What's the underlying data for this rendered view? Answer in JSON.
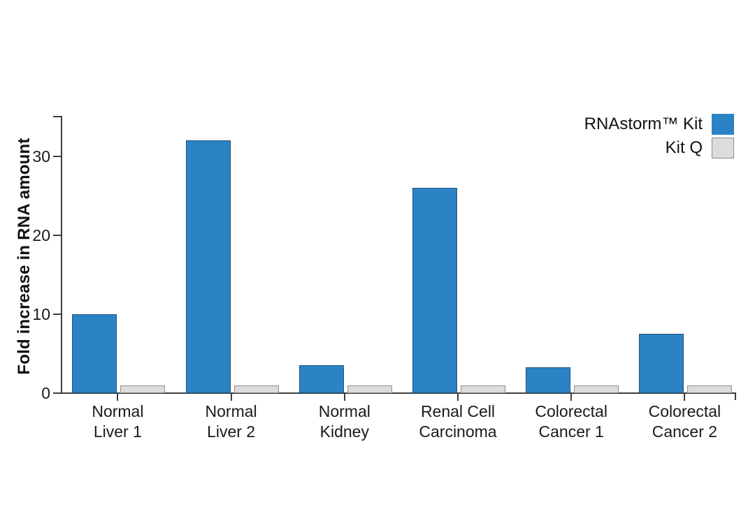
{
  "chart_data": {
    "type": "bar",
    "title": "",
    "ylabel": "Fold increase in RNA amount",
    "xlabel": "",
    "ylim": [
      0,
      35
    ],
    "yticks": [
      0,
      10,
      20,
      30
    ],
    "grid": false,
    "legend_position": "top-right",
    "categories": [
      "Normal Liver 1",
      "Normal Liver 2",
      "Normal Kidney",
      "Renal Cell Carcinoma",
      "Colorectal Cancer 1",
      "Colorectal Cancer 2"
    ],
    "categories_two_line": [
      [
        "Normal",
        "Liver 1"
      ],
      [
        "Normal",
        "Liver 2"
      ],
      [
        "Normal",
        "Kidney"
      ],
      [
        "Renal Cell",
        "Carcinoma"
      ],
      [
        "Colorectal",
        "Cancer 1"
      ],
      [
        "Colorectal",
        "Cancer 2"
      ]
    ],
    "series": [
      {
        "name": "RNAstorm™ Kit",
        "color": "#2b83c5",
        "values": [
          10,
          32,
          3.5,
          26,
          3.3,
          7.5
        ]
      },
      {
        "name": "Kit Q",
        "color": "#dcdcdc",
        "border_color": "#8f8f8f",
        "values": [
          1,
          1,
          1,
          1,
          1,
          1
        ]
      }
    ],
    "colors": {
      "axis": "#3d3d3d",
      "text": "#1a1a1a",
      "background": "#ffffff"
    }
  }
}
